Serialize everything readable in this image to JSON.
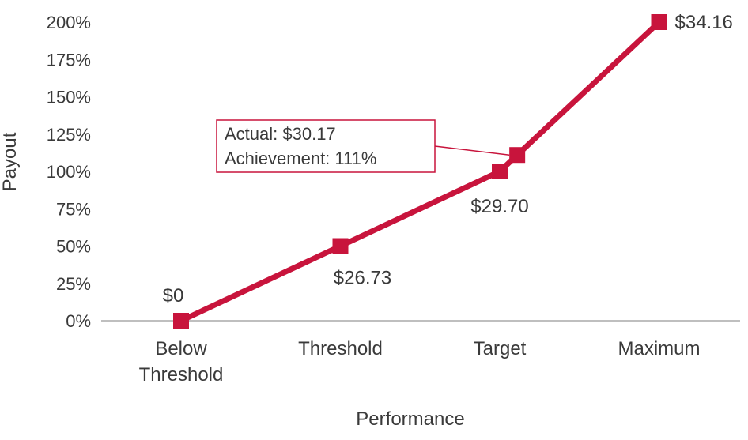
{
  "chart_data": {
    "type": "line",
    "xlabel": "Performance",
    "ylabel": "Payout",
    "categories": [
      "Below\nThreshold",
      "Threshold",
      "Target",
      "Maximum"
    ],
    "y_ticks": [
      "0%",
      "25%",
      "50%",
      "75%",
      "100%",
      "125%",
      "150%",
      "175%",
      "200%"
    ],
    "ylim": [
      0,
      200
    ],
    "grid": false,
    "series": [
      {
        "values": [
          0,
          50,
          100,
          200
        ],
        "labels": [
          "$0",
          "$26.73",
          "$29.70",
          "$34.16"
        ]
      }
    ],
    "actual_point": {
      "x_between": [
        "Target",
        "Maximum"
      ],
      "x_fraction": 0.11,
      "value": 111
    },
    "annotation": {
      "line1": "Actual: $30.17",
      "line2": "Achievement: 111%"
    },
    "colors": {
      "line": "#c8143c",
      "axis": "#bfbfbf",
      "text": "#3a3a3a"
    }
  }
}
